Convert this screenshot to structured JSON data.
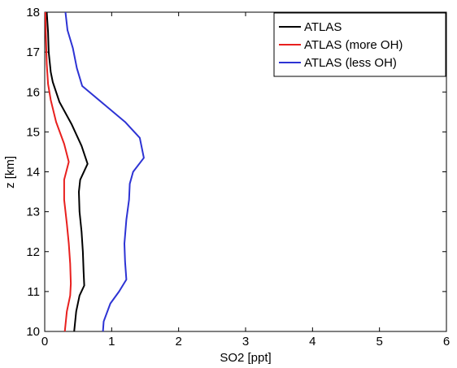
{
  "chart_data": {
    "type": "line",
    "xlabel": "SO2 [ppt]",
    "ylabel": "z [km]",
    "xlim": [
      0,
      6
    ],
    "ylim": [
      10,
      18
    ],
    "xticks": [
      0,
      1,
      2,
      3,
      4,
      5,
      6
    ],
    "yticks": [
      10,
      11,
      12,
      13,
      14,
      15,
      16,
      17,
      18
    ],
    "grid": false,
    "legend_position": "top-right",
    "series": [
      {
        "name": "ATLAS",
        "color": "#000000",
        "points": [
          [
            0.44,
            10.0
          ],
          [
            0.47,
            10.5
          ],
          [
            0.52,
            10.9
          ],
          [
            0.59,
            11.15
          ],
          [
            0.58,
            11.5
          ],
          [
            0.57,
            12.0
          ],
          [
            0.55,
            12.5
          ],
          [
            0.52,
            13.0
          ],
          [
            0.51,
            13.5
          ],
          [
            0.53,
            13.8
          ],
          [
            0.64,
            14.2
          ],
          [
            0.55,
            14.65
          ],
          [
            0.4,
            15.2
          ],
          [
            0.22,
            15.75
          ],
          [
            0.12,
            16.25
          ],
          [
            0.09,
            16.5
          ],
          [
            0.06,
            17.0
          ],
          [
            0.05,
            17.5
          ],
          [
            0.03,
            18.0
          ]
        ]
      },
      {
        "name": "ATLAS (more OH)",
        "color": "#e8201e",
        "points": [
          [
            0.3,
            10.0
          ],
          [
            0.33,
            10.5
          ],
          [
            0.38,
            10.9
          ],
          [
            0.39,
            11.2
          ],
          [
            0.38,
            11.7
          ],
          [
            0.36,
            12.2
          ],
          [
            0.33,
            12.7
          ],
          [
            0.29,
            13.3
          ],
          [
            0.29,
            13.8
          ],
          [
            0.36,
            14.25
          ],
          [
            0.29,
            14.7
          ],
          [
            0.17,
            15.25
          ],
          [
            0.09,
            15.8
          ],
          [
            0.05,
            16.2
          ],
          [
            0.03,
            16.7
          ],
          [
            0.02,
            17.3
          ],
          [
            0.01,
            18.0
          ]
        ]
      },
      {
        "name": "ATLAS (less OH)",
        "color": "#2d33d4",
        "points": [
          [
            0.87,
            10.0
          ],
          [
            0.88,
            10.25
          ],
          [
            0.98,
            10.7
          ],
          [
            1.11,
            11.0
          ],
          [
            1.22,
            11.3
          ],
          [
            1.2,
            11.75
          ],
          [
            1.19,
            12.2
          ],
          [
            1.22,
            12.8
          ],
          [
            1.26,
            13.3
          ],
          [
            1.27,
            13.7
          ],
          [
            1.32,
            14.0
          ],
          [
            1.48,
            14.35
          ],
          [
            1.42,
            14.85
          ],
          [
            1.2,
            15.25
          ],
          [
            0.56,
            16.15
          ],
          [
            0.48,
            16.6
          ],
          [
            0.42,
            17.1
          ],
          [
            0.34,
            17.55
          ],
          [
            0.31,
            18.0
          ]
        ]
      }
    ]
  }
}
